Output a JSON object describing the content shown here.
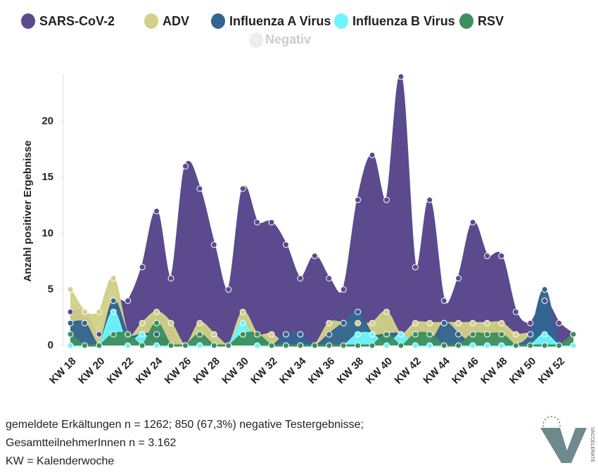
{
  "chart_data": {
    "type": "area",
    "y_axis_label": "Anzahl positiver Ergebnisse",
    "categories": [
      "KW 18",
      null,
      "KW 20",
      null,
      "KW 22",
      null,
      "KW 24",
      null,
      "KW 26",
      null,
      "KW 28",
      null,
      "KW 30",
      null,
      "KW 32",
      null,
      "KW 34",
      null,
      "KW 36",
      null,
      "KW 38",
      null,
      "KW 40",
      null,
      "KW 42",
      null,
      "KW 44",
      null,
      "KW 46",
      null,
      "KW 48",
      null,
      "KW 50",
      null,
      "KW 52",
      null
    ],
    "series": [
      {
        "name": "SARS-CoV-2",
        "color": "#5b4a8e",
        "values": [
          3,
          3,
          1,
          4,
          4,
          7,
          12,
          6,
          16,
          14,
          9,
          5,
          14,
          11,
          11,
          9,
          6,
          8,
          6,
          5,
          13,
          17,
          13,
          24,
          7,
          13,
          4,
          6,
          11,
          8,
          8,
          3,
          2,
          4,
          2,
          1
        ]
      },
      {
        "name": "ADV",
        "color": "#d1d088",
        "values": [
          5,
          3,
          3,
          6,
          1,
          2,
          3,
          2,
          0,
          2,
          1,
          0,
          3,
          1,
          1,
          0,
          0,
          0,
          2,
          2,
          2,
          2,
          3,
          1,
          2,
          2,
          2,
          2,
          2,
          2,
          2,
          1,
          1,
          0,
          0,
          1
        ]
      },
      {
        "name": "Influenza A Virus",
        "color": "#336591",
        "values": [
          2,
          2,
          0,
          4,
          1,
          1,
          1,
          0,
          0,
          0,
          0,
          0,
          1,
          1,
          0,
          1,
          1,
          0,
          1,
          2,
          3,
          1,
          1,
          1,
          0,
          0,
          2,
          1,
          0,
          0,
          0,
          0,
          1,
          5,
          0,
          0
        ]
      },
      {
        "name": "Influenza B Virus",
        "color": "#6ef5fb",
        "values": [
          0,
          0,
          0,
          3,
          0,
          1,
          0,
          0,
          0,
          0,
          0,
          0,
          2,
          0,
          0,
          0,
          0,
          0,
          0,
          0,
          1,
          1,
          0,
          1,
          0,
          0,
          0,
          0,
          0,
          0,
          0,
          0,
          0,
          1,
          0,
          0
        ]
      },
      {
        "name": "RSV",
        "color": "#3e8f5e",
        "values": [
          1,
          0,
          0,
          1,
          1,
          0,
          2,
          0,
          0,
          1,
          0,
          0,
          1,
          1,
          0,
          0,
          0,
          0,
          0,
          0,
          0,
          0,
          1,
          0,
          1,
          1,
          0,
          0,
          1,
          1,
          1,
          0,
          0,
          0,
          0,
          1
        ]
      }
    ],
    "hidden_series": [
      "Negativ"
    ],
    "ylim": [
      0,
      25
    ],
    "yticks": [
      0,
      5,
      10,
      15,
      20
    ],
    "grid": false,
    "legend": "top",
    "footnotes": [
      "gemeldete Erkältungen n = 1262; 850 (67,3%) negative Testergebnisse;",
      "GesamtteilnehmerInnen n = 3.162",
      "KW = Kalenderwoche"
    ],
    "logo_text": "VACCELERATE"
  }
}
